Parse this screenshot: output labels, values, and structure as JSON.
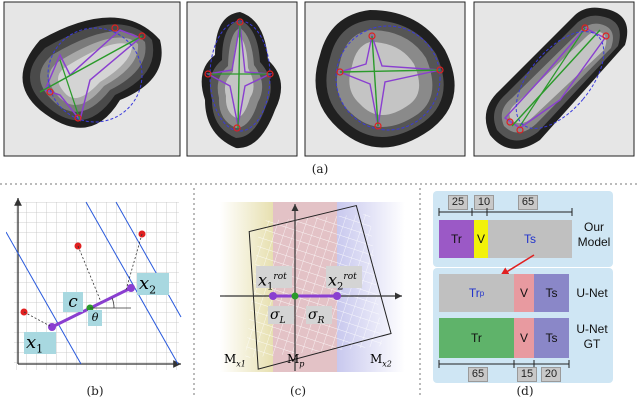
{
  "captions": {
    "a": "(a)",
    "b": "(b)",
    "c": "(c)",
    "d": "(d)"
  },
  "panel_b": {
    "label_c": "c",
    "label_theta": "θ",
    "label_x1": "x",
    "label_x1_sub": "1",
    "label_x2": "x",
    "label_x2_sub": "2"
  },
  "panel_c": {
    "label_x1rot": "x",
    "label_x1rot_sub": "1",
    "label_x1rot_sup": "rot",
    "label_x2rot": "x",
    "label_x2rot_sub": "2",
    "label_x2rot_sup": "rot",
    "label_sigma_l": "σ",
    "label_sigma_l_sub": "L",
    "label_sigma_r": "σ",
    "label_sigma_r_sub": "R",
    "region_left": "M",
    "region_left_sub": "x1",
    "region_mid": "M",
    "region_mid_sub": "p",
    "region_right": "M",
    "region_right_sub": "x2"
  },
  "panel_d": {
    "top_numbers": [
      "25",
      "10",
      "65"
    ],
    "bottom_numbers": [
      "65",
      "15",
      "20"
    ],
    "our_model": {
      "tr": "Tr",
      "v": "V",
      "ts": "Ts",
      "label": "Our Model"
    },
    "unet": {
      "trp": "Tr",
      "trp_sub": "p",
      "v": "V",
      "ts": "Ts",
      "label": "U-Net"
    },
    "unet_gt": {
      "tr": "Tr",
      "v": "V",
      "ts": "Ts",
      "label": "U-Net GT"
    },
    "colors": {
      "purple": "#9b59c6",
      "yellow": "#f2f20a",
      "gray": "#c0c0c0",
      "green": "#5fb36a",
      "pink": "#e89aa0",
      "blue_ts": "#8a87c8",
      "panel_bg": "#cfe6f4",
      "arrow": "#e02020"
    }
  }
}
